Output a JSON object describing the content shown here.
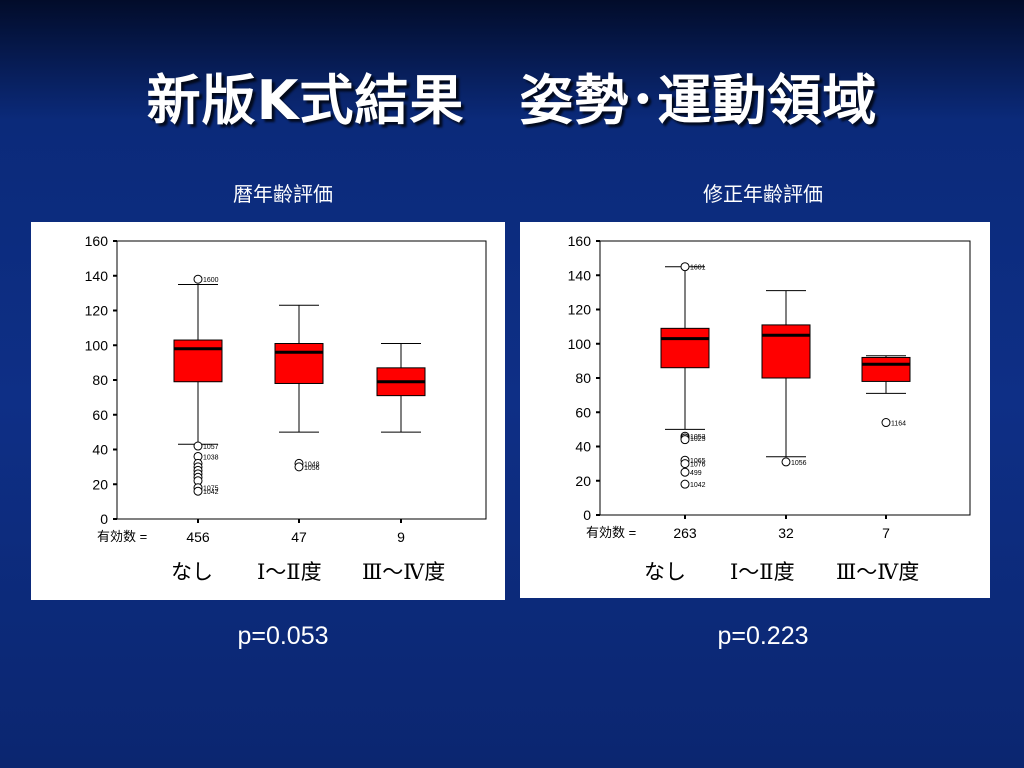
{
  "slide": {
    "title": "新版K式結果　姿勢･運動領域",
    "colors": {
      "box_fill": "#ff0000",
      "median": "#000000",
      "panel_bg": "#ffffff",
      "text": "#ffffff"
    }
  },
  "panels": [
    {
      "heading": "暦年齢評価",
      "p_value": "p=0.053",
      "n_label": "有効数 =",
      "groups": [
        "なし",
        "Ⅰ～Ⅱ度",
        "Ⅲ～Ⅳ度"
      ]
    },
    {
      "heading": "修正年齢評価",
      "p_value": "p=0.223",
      "n_label": "有効数 =",
      "groups": [
        "なし",
        "Ⅰ～Ⅱ度",
        "Ⅲ～Ⅳ度"
      ]
    }
  ],
  "chart_data": [
    {
      "type": "box",
      "title": "暦年齢評価",
      "ylim": [
        0,
        160
      ],
      "yticks": [
        0,
        20,
        40,
        60,
        80,
        100,
        120,
        140,
        160
      ],
      "categories": [
        "なし",
        "Ⅰ～Ⅱ度",
        "Ⅲ～Ⅳ度"
      ],
      "n": [
        "456",
        "47",
        "9"
      ],
      "boxes": [
        {
          "whisker_low": 43,
          "q1": 79,
          "median": 98,
          "q3": 103,
          "whisker_high": 135
        },
        {
          "whisker_low": 50,
          "q1": 78,
          "median": 96,
          "q3": 101,
          "whisker_high": 123
        },
        {
          "whisker_low": 50,
          "q1": 71,
          "median": 79,
          "q3": 87,
          "whisker_high": 101
        }
      ],
      "outliers": [
        {
          "group": 0,
          "y": 138,
          "label": "1600"
        },
        {
          "group": 0,
          "y": 42,
          "label": "1057"
        },
        {
          "group": 0,
          "y": 36,
          "label": "1038"
        },
        {
          "group": 0,
          "y": 32,
          "label": ""
        },
        {
          "group": 0,
          "y": 30,
          "label": ""
        },
        {
          "group": 0,
          "y": 28,
          "label": ""
        },
        {
          "group": 0,
          "y": 26,
          "label": ""
        },
        {
          "group": 0,
          "y": 24,
          "label": ""
        },
        {
          "group": 0,
          "y": 22,
          "label": ""
        },
        {
          "group": 0,
          "y": 18,
          "label": "1075"
        },
        {
          "group": 0,
          "y": 16,
          "label": "1042"
        },
        {
          "group": 1,
          "y": 32,
          "label": "1048"
        },
        {
          "group": 1,
          "y": 30,
          "label": "1056"
        }
      ]
    },
    {
      "type": "box",
      "title": "修正年齢評価",
      "ylim": [
        0,
        160
      ],
      "yticks": [
        0,
        20,
        40,
        60,
        80,
        100,
        120,
        140,
        160
      ],
      "categories": [
        "なし",
        "Ⅰ～Ⅱ度",
        "Ⅲ～Ⅳ度"
      ],
      "n": [
        "263",
        "32",
        "7"
      ],
      "boxes": [
        {
          "whisker_low": 50,
          "q1": 86,
          "median": 103,
          "q3": 109,
          "whisker_high": 145
        },
        {
          "whisker_low": 34,
          "q1": 80,
          "median": 105,
          "q3": 111,
          "whisker_high": 131
        },
        {
          "whisker_low": 71,
          "q1": 78,
          "median": 88,
          "q3": 92,
          "whisker_high": 93
        }
      ],
      "outliers": [
        {
          "group": 0,
          "y": 145,
          "label": "1601"
        },
        {
          "group": 0,
          "y": 46,
          "label": "1053"
        },
        {
          "group": 0,
          "y": 45,
          "label": "1025"
        },
        {
          "group": 0,
          "y": 44,
          "label": ""
        },
        {
          "group": 0,
          "y": 32,
          "label": "1065"
        },
        {
          "group": 0,
          "y": 30,
          "label": "1076"
        },
        {
          "group": 0,
          "y": 25,
          "label": "499"
        },
        {
          "group": 0,
          "y": 18,
          "label": "1042"
        },
        {
          "group": 1,
          "y": 31,
          "label": "1056"
        },
        {
          "group": 2,
          "y": 54,
          "label": "1164"
        }
      ]
    }
  ]
}
